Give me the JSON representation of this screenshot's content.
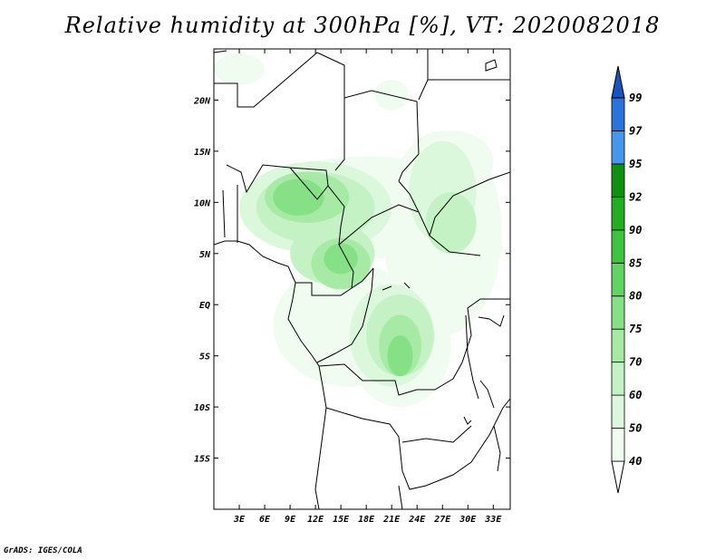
{
  "title": "Relative humidity at 300hPa [%], VT: 2020082018",
  "credit": "GrADS: IGES/COLA",
  "map": {
    "lon_range": [
      0,
      35
    ],
    "lat_range": [
      -20,
      25
    ],
    "x_ticks": [
      {
        "value": 3,
        "label": "3E"
      },
      {
        "value": 6,
        "label": "6E"
      },
      {
        "value": 9,
        "label": "9E"
      },
      {
        "value": 12,
        "label": "12E"
      },
      {
        "value": 15,
        "label": "15E"
      },
      {
        "value": 18,
        "label": "18E"
      },
      {
        "value": 21,
        "label": "21E"
      },
      {
        "value": 24,
        "label": "24E"
      },
      {
        "value": 27,
        "label": "27E"
      },
      {
        "value": 30,
        "label": "30E"
      },
      {
        "value": 33,
        "label": "33E"
      }
    ],
    "y_ticks": [
      {
        "value": 20,
        "label": "20N"
      },
      {
        "value": 15,
        "label": "15N"
      },
      {
        "value": 10,
        "label": "10N"
      },
      {
        "value": 5,
        "label": "5N"
      },
      {
        "value": 0,
        "label": "EQ"
      },
      {
        "value": -5,
        "label": "5S"
      },
      {
        "value": -10,
        "label": "10S"
      },
      {
        "value": -15,
        "label": "15S"
      }
    ]
  },
  "colorbar": {
    "levels": [
      {
        "label": "40",
        "color": "#f0fcf0"
      },
      {
        "label": "50",
        "color": "#dcf8dc"
      },
      {
        "label": "60",
        "color": "#c4f2c4"
      },
      {
        "label": "70",
        "color": "#a6eaa6"
      },
      {
        "label": "75",
        "color": "#86e086"
      },
      {
        "label": "80",
        "color": "#62d462"
      },
      {
        "label": "85",
        "color": "#3fc43f"
      },
      {
        "label": "90",
        "color": "#22ad22"
      },
      {
        "label": "92",
        "color": "#109010"
      },
      {
        "label": "95",
        "color": "#4696ee"
      },
      {
        "label": "97",
        "color": "#2a72dc"
      },
      {
        "label": "99",
        "color": "#1a52c0"
      }
    ]
  },
  "humidity_field": [
    {
      "lon": 18,
      "lat": 9.5,
      "rx": 14,
      "ry": 5,
      "level": 0
    },
    {
      "lon": 27,
      "lat": 7,
      "rx": 7,
      "ry": 10,
      "level": 0
    },
    {
      "lon": 16,
      "lat": -2,
      "rx": 9,
      "ry": 6,
      "level": 0
    },
    {
      "lon": 22,
      "lat": -4,
      "rx": 6,
      "ry": 6,
      "level": 0
    },
    {
      "lon": 28,
      "lat": 14,
      "rx": 5,
      "ry": 3,
      "level": 0
    },
    {
      "lon": 21,
      "lat": 20.5,
      "rx": 2,
      "ry": 1.5,
      "level": 0
    },
    {
      "lon": 3,
      "lat": 23,
      "rx": 3,
      "ry": 1.5,
      "level": 0
    },
    {
      "lon": 12,
      "lat": 9.5,
      "rx": 9,
      "ry": 4.5,
      "level": 1
    },
    {
      "lon": 27,
      "lat": 11,
      "rx": 4,
      "ry": 5,
      "level": 1
    },
    {
      "lon": 21,
      "lat": -3,
      "rx": 5,
      "ry": 5,
      "level": 1
    },
    {
      "lon": 12,
      "lat": 9.5,
      "rx": 7,
      "ry": 3.5,
      "level": 2
    },
    {
      "lon": 14,
      "lat": 5,
      "rx": 5,
      "ry": 3,
      "level": 2
    },
    {
      "lon": 22,
      "lat": -3,
      "rx": 4,
      "ry": 4,
      "level": 2
    },
    {
      "lon": 28,
      "lat": 8,
      "rx": 3,
      "ry": 3,
      "level": 2
    },
    {
      "lon": 11,
      "lat": 10.5,
      "rx": 5,
      "ry": 2.5,
      "level": 3
    },
    {
      "lon": 15,
      "lat": 4,
      "rx": 3.5,
      "ry": 2.5,
      "level": 3
    },
    {
      "lon": 22,
      "lat": -4,
      "rx": 2.5,
      "ry": 3,
      "level": 3
    },
    {
      "lon": 10,
      "lat": 10.5,
      "rx": 3,
      "ry": 1.8,
      "level": 4
    },
    {
      "lon": 15,
      "lat": 4.5,
      "rx": 2,
      "ry": 1.5,
      "level": 4
    },
    {
      "lon": 22,
      "lat": -5,
      "rx": 1.5,
      "ry": 2,
      "level": 4
    }
  ]
}
